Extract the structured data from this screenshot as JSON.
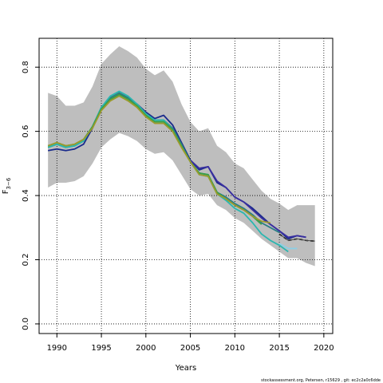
{
  "chart_data": {
    "type": "line",
    "xlabel": "Years",
    "ylabel_main": "F",
    "ylabel_sub": "3−6",
    "xlim": [
      1988,
      2021
    ],
    "ylim": [
      -0.03,
      0.89
    ],
    "x_ticks": [
      1990,
      1995,
      2000,
      2005,
      2010,
      2015,
      2020
    ],
    "y_ticks": [
      0.0,
      0.2,
      0.4,
      0.6,
      0.8
    ],
    "y_tick_labels": [
      "0.0",
      "0.2",
      "0.4",
      "0.6",
      "0.8"
    ],
    "grid": "dotted",
    "footer": "stockassessment.org, Petersen, r15629 , git: ec2c2a0c6dde",
    "confidence_band": {
      "color": "#bebebe",
      "x": [
        1989,
        1990,
        1991,
        1992,
        1993,
        1994,
        1995,
        1996,
        1997,
        1998,
        1999,
        2000,
        2001,
        2002,
        2003,
        2004,
        2005,
        2006,
        2007,
        2008,
        2009,
        2010,
        2011,
        2012,
        2013,
        2014,
        2015,
        2016,
        2017,
        2018,
        2019
      ],
      "upper": [
        0.72,
        0.71,
        0.68,
        0.68,
        0.69,
        0.74,
        0.81,
        0.84,
        0.865,
        0.85,
        0.83,
        0.795,
        0.775,
        0.79,
        0.755,
        0.685,
        0.63,
        0.6,
        0.61,
        0.555,
        0.535,
        0.5,
        0.485,
        0.45,
        0.415,
        0.39,
        0.375,
        0.355,
        0.37,
        0.37,
        0.37
      ],
      "lower": [
        0.425,
        0.44,
        0.44,
        0.445,
        0.46,
        0.5,
        0.55,
        0.575,
        0.595,
        0.585,
        0.57,
        0.545,
        0.53,
        0.535,
        0.51,
        0.465,
        0.42,
        0.4,
        0.405,
        0.37,
        0.355,
        0.33,
        0.315,
        0.29,
        0.265,
        0.245,
        0.225,
        0.205,
        0.205,
        0.19,
        0.18
      ]
    },
    "series": [
      {
        "color": "#1a2b8c",
        "width": 1.8,
        "dash": "",
        "x": [
          1989,
          1990,
          1991,
          1992,
          1993,
          1994,
          1995,
          1996,
          1997,
          1998,
          1999,
          2000,
          2001,
          2002,
          2003,
          2004,
          2005,
          2006,
          2007,
          2008,
          2009,
          2010,
          2011,
          2012,
          2013,
          2014,
          2015,
          2016,
          2017,
          2018
        ],
        "y": [
          0.54,
          0.545,
          0.54,
          0.545,
          0.56,
          0.61,
          0.675,
          0.7,
          0.715,
          0.705,
          0.685,
          0.66,
          0.64,
          0.65,
          0.62,
          0.565,
          0.51,
          0.48,
          0.49,
          0.44,
          0.425,
          0.395,
          0.38,
          0.36,
          0.335,
          0.31,
          0.29,
          0.265,
          0.275,
          0.27
        ]
      },
      {
        "color": "#3a2fa0",
        "width": 1.8,
        "dash": "",
        "x": [
          2005,
          2006,
          2007,
          2008,
          2009,
          2010,
          2011,
          2012,
          2013,
          2014,
          2015,
          2016,
          2017,
          2018
        ],
        "y": [
          0.51,
          0.485,
          0.49,
          0.445,
          0.425,
          0.395,
          0.38,
          0.355,
          0.33,
          0.31,
          0.29,
          0.27,
          0.275,
          0.27
        ]
      },
      {
        "color": "#2a7e86",
        "width": 1.8,
        "dash": "",
        "x": [
          1989,
          1990,
          1991,
          1992,
          1993,
          1994,
          1995,
          1996,
          1997,
          1998,
          1999,
          2000,
          2001,
          2002,
          2003,
          2004,
          2005,
          2006,
          2007,
          2008,
          2009,
          2010,
          2011,
          2012,
          2013,
          2014,
          2015
        ],
        "y": [
          0.55,
          0.56,
          0.55,
          0.555,
          0.57,
          0.615,
          0.675,
          0.705,
          0.72,
          0.705,
          0.685,
          0.655,
          0.635,
          0.635,
          0.61,
          0.56,
          0.505,
          0.47,
          0.465,
          0.41,
          0.395,
          0.375,
          0.36,
          0.34,
          0.315,
          0.3,
          0.285
        ]
      },
      {
        "color": "#2ab7b0",
        "width": 1.8,
        "dash": "",
        "x": [
          1989,
          1990,
          1991,
          1992,
          1993,
          1994,
          1995,
          1996,
          1997,
          1998,
          1999,
          2000,
          2001,
          2002,
          2003,
          2004,
          2005,
          2006,
          2007,
          2008,
          2009,
          2010,
          2011,
          2012,
          2013,
          2014,
          2015,
          2016
        ],
        "y": [
          0.55,
          0.56,
          0.55,
          0.555,
          0.57,
          0.615,
          0.675,
          0.71,
          0.725,
          0.71,
          0.685,
          0.655,
          0.635,
          0.635,
          0.605,
          0.555,
          0.505,
          0.465,
          0.46,
          0.405,
          0.385,
          0.36,
          0.345,
          0.315,
          0.28,
          0.26,
          0.245,
          0.225
        ]
      },
      {
        "color": "#3aa046",
        "width": 1.8,
        "dash": "",
        "x": [
          1989,
          1990,
          1991,
          1992,
          1993,
          1994,
          1995,
          1996,
          1997,
          1998,
          1999,
          2000,
          2001,
          2002,
          2003,
          2004,
          2005,
          2006,
          2007,
          2008,
          2009,
          2010,
          2011,
          2012,
          2013
        ],
        "y": [
          0.555,
          0.565,
          0.555,
          0.56,
          0.575,
          0.615,
          0.67,
          0.7,
          0.715,
          0.7,
          0.68,
          0.65,
          0.63,
          0.63,
          0.605,
          0.555,
          0.505,
          0.47,
          0.465,
          0.41,
          0.39,
          0.37,
          0.355,
          0.335,
          0.31
        ]
      },
      {
        "color": "#9c9a2c",
        "width": 1.8,
        "dash": "",
        "x": [
          1989,
          1990,
          1991,
          1992,
          1993,
          1994,
          1995,
          1996,
          1997,
          1998,
          1999,
          2000,
          2001,
          2002,
          2003,
          2004,
          2005,
          2006,
          2007,
          2008,
          2009,
          2010,
          2011,
          2012,
          2013,
          2014
        ],
        "y": [
          0.555,
          0.565,
          0.555,
          0.56,
          0.575,
          0.61,
          0.665,
          0.695,
          0.71,
          0.695,
          0.675,
          0.645,
          0.625,
          0.625,
          0.6,
          0.55,
          0.505,
          0.465,
          0.46,
          0.405,
          0.39,
          0.37,
          0.355,
          0.335,
          0.32,
          0.315
        ]
      },
      {
        "color": "#8ccfe6",
        "width": 1.8,
        "dash": "",
        "x": [
          2015,
          2016,
          2017
        ],
        "y": [
          0.25,
          0.235,
          0.235
        ]
      },
      {
        "color": "#000000",
        "width": 1.6,
        "dash": "4,3",
        "x": [
          2015,
          2016,
          2017,
          2018,
          2019
        ],
        "y": [
          0.28,
          0.26,
          0.265,
          0.26,
          0.258
        ]
      },
      {
        "color": "#444444",
        "width": 1.0,
        "dash": "",
        "x": [
          2015,
          2016,
          2017,
          2018,
          2019
        ],
        "y": [
          0.28,
          0.26,
          0.265,
          0.26,
          0.258
        ]
      }
    ]
  }
}
